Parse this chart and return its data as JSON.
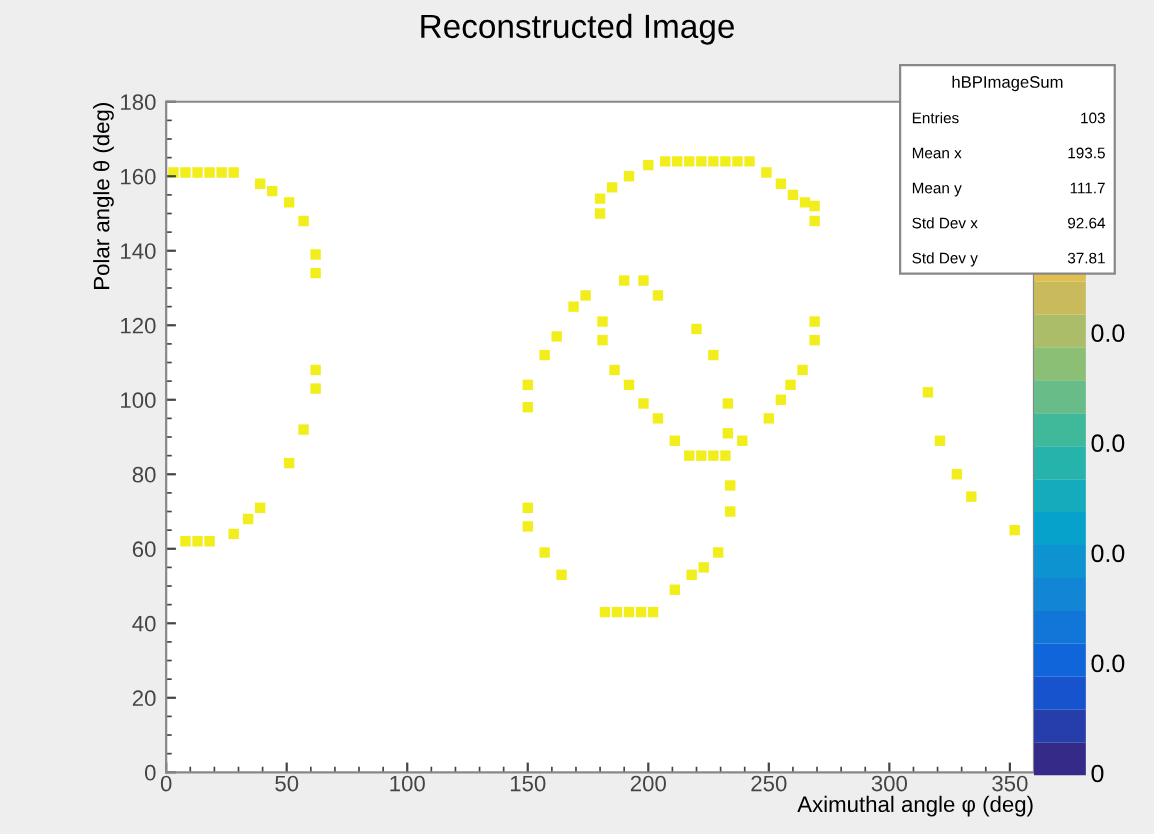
{
  "chart_data": {
    "type": "scatter",
    "title": "Reconstructed Image",
    "xlabel": "Aximuthal angle φ (deg)",
    "ylabel": "Polar angle θ (deg)",
    "xlim": [
      0,
      360
    ],
    "ylim": [
      0,
      180
    ],
    "xticks": [
      0,
      50,
      100,
      150,
      200,
      250,
      300,
      350
    ],
    "yticks": [
      0,
      20,
      40,
      60,
      80,
      100,
      120,
      140,
      160,
      180
    ],
    "grid": false,
    "marker": "square",
    "annotations": [
      "hBPImageSum",
      "Entries",
      "103",
      "Mean x",
      "193.5",
      "Mean y",
      "111.7",
      "Std Dev x",
      "92.64",
      "Std Dev y",
      "37.81",
      "0.0",
      "0.0",
      "0.0",
      "0.0",
      "0"
    ],
    "series": [
      {
        "color": "#f2ee1c",
        "x": [
          3,
          8,
          13,
          18,
          23,
          28,
          39,
          44,
          51,
          57,
          62,
          62,
          62,
          62,
          57,
          51,
          39,
          34,
          28,
          8,
          13,
          18,
          150,
          150,
          157,
          162,
          169,
          150,
          150,
          157,
          164,
          180,
          180,
          185,
          192,
          200,
          207,
          212,
          217,
          222,
          227,
          232,
          237,
          242,
          249,
          255,
          260,
          265,
          269,
          269,
          269,
          269,
          264,
          259,
          255,
          250,
          190,
          198,
          204,
          174,
          181,
          181,
          186,
          192,
          198,
          204,
          211,
          217,
          222,
          227,
          232,
          220,
          227,
          233,
          233,
          239,
          234,
          234,
          229,
          223,
          218,
          211,
          182,
          187,
          192,
          197,
          202,
          316,
          321,
          328,
          334,
          352
        ],
        "values": [
          161,
          161,
          161,
          161,
          161,
          161,
          158,
          156,
          153,
          148,
          139,
          134,
          108,
          103,
          92,
          83,
          71,
          68,
          64,
          62,
          62,
          62,
          104,
          98,
          112,
          117,
          125,
          71,
          66,
          59,
          53,
          154,
          150,
          157,
          160,
          163,
          164,
          164,
          164,
          164,
          164,
          164,
          164,
          164,
          161,
          158,
          155,
          153,
          152,
          148,
          121,
          116,
          108,
          104,
          100,
          95,
          132,
          132,
          128,
          128,
          121,
          116,
          108,
          104,
          99,
          95,
          89,
          85,
          85,
          85,
          85,
          119,
          112,
          99,
          91,
          89,
          77,
          70,
          59,
          55,
          53,
          49,
          43,
          43,
          43,
          43,
          43,
          102,
          89,
          80,
          74,
          65
        ]
      }
    ]
  }
}
